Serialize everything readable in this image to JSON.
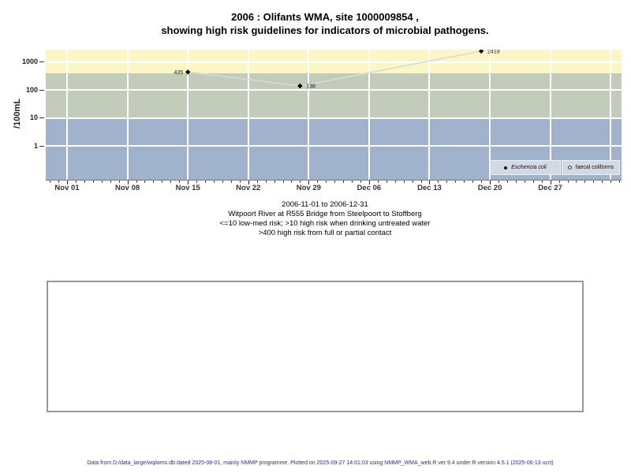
{
  "title": {
    "line1": "2006 : Olifants WMA, site 1000009854 ,",
    "line2": "showing high risk guidelines for indicators of microbial pathogens."
  },
  "chart_data": {
    "type": "scatter",
    "title": "2006 : Olifants WMA, site 1000009854 , showing high risk guidelines for indicators of microbial pathogens.",
    "ylabel": "/100mL",
    "x_axis": {
      "start_date": "2006-11-01",
      "end_date": "2006-12-31",
      "major_ticks": [
        {
          "day": 0,
          "label": "Nov 01"
        },
        {
          "day": 7,
          "label": "Nov 08"
        },
        {
          "day": 14,
          "label": "Nov 15"
        },
        {
          "day": 21,
          "label": "Nov 22"
        },
        {
          "day": 28,
          "label": "Nov 29"
        },
        {
          "day": 35,
          "label": "Dec 06"
        },
        {
          "day": 42,
          "label": "Dec 13"
        },
        {
          "day": 49,
          "label": "Dec 20"
        },
        {
          "day": 56,
          "label": "Dec 27"
        }
      ],
      "extra_gridline_days": [
        63
      ],
      "minor_day_range": [
        -2,
        64
      ],
      "minor_tick_interval_days": 1
    },
    "y_axis": {
      "scale": "log10",
      "ticks": [
        1,
        10,
        100,
        1000
      ],
      "range_approx": [
        0.06,
        2800
      ]
    },
    "bands": [
      {
        "name": "high-risk",
        "from": 400,
        "to": 2800,
        "color": "#FBF6C5",
        "meaning": ">400 high risk from full or partial contact"
      },
      {
        "name": "medium-risk",
        "from": 10,
        "to": 400,
        "color": "#C3CCBA",
        "meaning": ">10 high risk when drinking untreated water"
      },
      {
        "name": "low-med-risk",
        "from": 0.06,
        "to": 10,
        "color": "#A1B2CD",
        "meaning": "<=10 low-med risk"
      }
    ],
    "gridline_color": "#FFFFFF",
    "series": [
      {
        "name": "Eschericia coli",
        "marker": "filled-diamond",
        "marker_color": "#000000",
        "line_color": "#D9D9D9",
        "points": [
          {
            "date": "2006-11-15",
            "day": 14,
            "value": 435,
            "label": "435",
            "label_side": "left"
          },
          {
            "date": "2006-11-28",
            "day": 27,
            "value": 138,
            "label": "138",
            "label_side": "right"
          },
          {
            "date": "2006-12-19",
            "day": 48,
            "value": 2419,
            "label": "2419",
            "label_side": "right"
          }
        ]
      },
      {
        "name": "faecal coliforms",
        "marker": "open-circle",
        "marker_color": "#444444",
        "points": []
      }
    ],
    "legend_position": "bottom-right"
  },
  "legend": {
    "items": [
      {
        "label": "Eschericia coli",
        "marker": "filled-circle",
        "italic": true
      },
      {
        "label": "faecal coliforms",
        "marker": "open-circle",
        "italic": false
      }
    ]
  },
  "subtitle": {
    "lines": [
      "2006-11-01 to 2006-12-31",
      "Witpoort River at R555 Bridge from Steelpoort to Stoffberg",
      "<=10 low-med risk; >10 high risk when drinking untreated water",
      ">400 high risk from full or partial contact"
    ]
  },
  "footer": {
    "text": "Data from D:/data_large/wq/wms.db dated 2025-08-01, mainly NMMP programme. Plotted on 2025-09-27 14:01:03 using NMMP_WMA_web.R ver 9.4 under R version 4.5.1 (2025-06-13 ucrt)"
  }
}
